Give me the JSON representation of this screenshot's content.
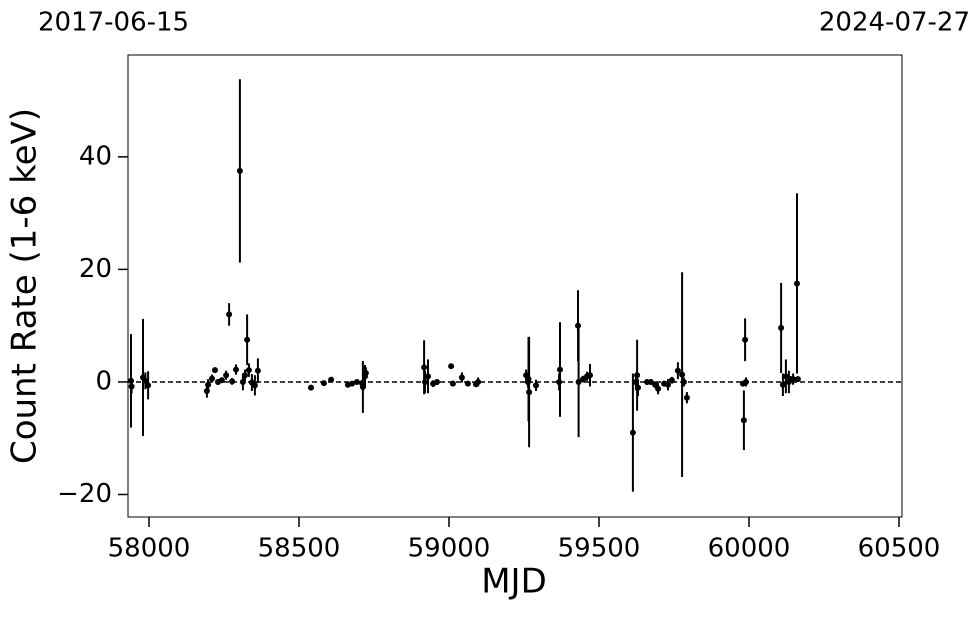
{
  "chart_data": {
    "type": "errorbar",
    "annotations": [
      "2017-06-15",
      "2024-07-27"
    ],
    "xlabel": "MJD",
    "ylabel": "Count Rate (1-6 keV)",
    "x": [
      57940,
      57942,
      57980,
      57988,
      57997,
      58193,
      58197,
      58210,
      58220,
      58230,
      58243,
      58257,
      58267,
      58277,
      58290,
      58303,
      58313,
      58320,
      58327,
      58333,
      58343,
      58353,
      58363,
      58540,
      58583,
      58607,
      58663,
      58677,
      58693,
      58710,
      58713,
      58720,
      58723,
      58917,
      58920,
      58930,
      58947,
      58960,
      59007,
      59013,
      59043,
      59063,
      59090,
      59097,
      59257,
      59263,
      59265,
      59267,
      59290,
      59367,
      59370,
      59430,
      59432,
      59447,
      59460,
      59470,
      59613,
      59623,
      59627,
      59630,
      59660,
      59673,
      59687,
      59697,
      59717,
      59730,
      59743,
      59763,
      59777,
      59783,
      59793,
      59980,
      59983,
      59987,
      59990,
      60107,
      60113,
      60123,
      60133,
      60140,
      60147,
      60160,
      60163
    ],
    "values": [
      0.2,
      -0.8,
      0.8,
      0.2,
      -0.6,
      -1.6,
      -0.5,
      0.6,
      2.1,
      0,
      0.3,
      1.2,
      12,
      0.1,
      2.2,
      37.5,
      0,
      1.2,
      7.5,
      2.1,
      -0.1,
      -0.6,
      2,
      -1,
      -0.2,
      0.4,
      -0.5,
      -0.3,
      0,
      -0.2,
      -0.9,
      1,
      1.6,
      2.6,
      0,
      1,
      -0.3,
      0,
      2.8,
      -0.3,
      0.8,
      -0.3,
      -0.4,
      0,
      1.2,
      0,
      0.5,
      -1.8,
      -0.6,
      0,
      2.2,
      10,
      0,
      0.5,
      1,
      1.2,
      -9,
      0,
      1.2,
      -1,
      0,
      0,
      -0.5,
      -1.2,
      -0.3,
      -0.5,
      0.3,
      2,
      1.3,
      0,
      -2.8,
      -0.3,
      -6.8,
      7.5,
      0,
      9.6,
      -0.5,
      1,
      0,
      0.5,
      0.5,
      17.5,
      0.5
    ],
    "errors": [
      8.3,
      1.2,
      10.4,
      1.5,
      2.5,
      1.2,
      1,
      0.7,
      0.5,
      0.5,
      0.5,
      0.8,
      2,
      0.6,
      0.9,
      16.3,
      1.5,
      1,
      4.5,
      1.2,
      1.5,
      1.8,
      2.2,
      0.4,
      0.4,
      0.3,
      0.5,
      0.4,
      0.4,
      0.5,
      4.6,
      2,
      1,
      4.8,
      2,
      3,
      0.6,
      0.5,
      0.5,
      0.5,
      0.9,
      0.5,
      0.5,
      0.8,
      1,
      1,
      7.5,
      9.8,
      1,
      1.5,
      8.4,
      6.3,
      9.8,
      0.6,
      0.8,
      2,
      10.5,
      1.5,
      6.3,
      1.5,
      0.5,
      0.5,
      0.6,
      1,
      0.5,
      1,
      0.6,
      1.5,
      18.2,
      0.8,
      1,
      0.5,
      5.3,
      3.8,
      0.8,
      8,
      2,
      3,
      2,
      0.5,
      1,
      16,
      0.5
    ],
    "color": "#000000",
    "hline": 0,
    "xlim": [
      57930,
      60510
    ],
    "ylim": [
      -24,
      58.1
    ],
    "xticks": [
      58000,
      58500,
      59000,
      59500,
      60000,
      60500
    ],
    "yticks": [
      {
        "value": -20,
        "label": "−20"
      },
      0,
      20,
      40
    ],
    "grid": false
  }
}
